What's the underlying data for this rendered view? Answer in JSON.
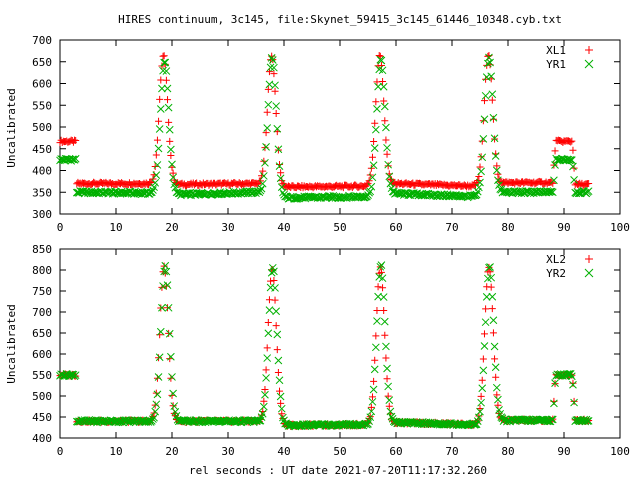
{
  "title": "HIRES continuum, 3c145, file:Skynet_59415_3c145_61446_10348.cyb.txt",
  "xlabel": "rel seconds : UT date 2021-07-20T11:17:32.260",
  "colors": {
    "xl": "#ff0000",
    "yr": "#00b000"
  },
  "chart_data": [
    {
      "type": "scatter",
      "ylabel": "Uncalibrated",
      "xlim": [
        0,
        100
      ],
      "ylim": [
        300,
        700
      ],
      "xticks": [
        "0",
        "10",
        "20",
        "30",
        "40",
        "50",
        "60",
        "70",
        "80",
        "90",
        "100"
      ],
      "yticks": [
        "300",
        "350",
        "400",
        "450",
        "500",
        "550",
        "600",
        "650",
        "700"
      ],
      "legend_position": "top-right",
      "series": [
        {
          "name": "XL1",
          "marker": "plus",
          "baseline": [
            [
              0,
              467
            ],
            [
              2.8,
              467
            ],
            [
              3,
              370
            ],
            [
              16.5,
              370
            ],
            [
              22,
              368
            ],
            [
              35,
              370
            ],
            [
              39.5,
              362
            ],
            [
              54.5,
              364
            ],
            [
              59.5,
              370
            ],
            [
              74.5,
              364
            ],
            [
              79.5,
              372
            ],
            [
              88,
              372
            ],
            [
              88.5,
              467
            ],
            [
              91.5,
              467
            ],
            [
              92,
              368
            ],
            [
              94.5,
              368
            ]
          ],
          "peaks": [
            [
              18.5,
              665
            ],
            [
              37.8,
              665
            ],
            [
              57.1,
              665
            ],
            [
              76.5,
              668
            ]
          ]
        },
        {
          "name": "YR1",
          "marker": "cross",
          "baseline": [
            [
              0,
              425
            ],
            [
              2.8,
              425
            ],
            [
              3,
              350
            ],
            [
              16.5,
              348
            ],
            [
              22,
              345
            ],
            [
              35,
              350
            ],
            [
              39.5,
              337
            ],
            [
              54.5,
              340
            ],
            [
              59.5,
              347
            ],
            [
              74.5,
              340
            ],
            [
              79.5,
              350
            ],
            [
              88,
              350
            ],
            [
              88.5,
              425
            ],
            [
              91.5,
              425
            ],
            [
              92,
              350
            ],
            [
              94.5,
              350
            ]
          ],
          "peaks": [
            [
              18.7,
              650
            ],
            [
              37.9,
              660
            ],
            [
              57.3,
              655
            ],
            [
              76.6,
              658
            ]
          ]
        }
      ]
    },
    {
      "type": "scatter",
      "ylabel": "Uncalibrated",
      "xlim": [
        0,
        100
      ],
      "ylim": [
        400,
        850
      ],
      "xticks": [
        "0",
        "10",
        "20",
        "30",
        "40",
        "50",
        "60",
        "70",
        "80",
        "90",
        "100"
      ],
      "yticks": [
        "400",
        "450",
        "500",
        "550",
        "600",
        "650",
        "700",
        "750",
        "800",
        "850"
      ],
      "legend_position": "top-right",
      "series": [
        {
          "name": "XL2",
          "marker": "plus",
          "baseline": [
            [
              0,
              550
            ],
            [
              2.8,
              550
            ],
            [
              3,
              440
            ],
            [
              16.5,
              440
            ],
            [
              22,
              440
            ],
            [
              35,
              440
            ],
            [
              39.5,
              430
            ],
            [
              54.5,
              432
            ],
            [
              59.5,
              437
            ],
            [
              74.5,
              432
            ],
            [
              79.5,
              442
            ],
            [
              88,
              442
            ],
            [
              88.5,
              550
            ],
            [
              91.5,
              550
            ],
            [
              92,
              442
            ],
            [
              94.5,
              442
            ]
          ],
          "peaks": [
            [
              18.6,
              808
            ],
            [
              37.9,
              802
            ],
            [
              57.2,
              807
            ],
            [
              76.6,
              808
            ]
          ]
        },
        {
          "name": "YR2",
          "marker": "cross",
          "baseline": [
            [
              0,
              550
            ],
            [
              2.8,
              550
            ],
            [
              3,
              440
            ],
            [
              16.5,
              440
            ],
            [
              22,
              440
            ],
            [
              35,
              440
            ],
            [
              39.5,
              430
            ],
            [
              54.5,
              432
            ],
            [
              59.5,
              437
            ],
            [
              74.5,
              432
            ],
            [
              79.5,
              442
            ],
            [
              88,
              442
            ],
            [
              88.5,
              550
            ],
            [
              91.5,
              550
            ],
            [
              92,
              442
            ],
            [
              94.5,
              442
            ]
          ],
          "peaks": [
            [
              18.8,
              812
            ],
            [
              38.0,
              808
            ],
            [
              57.3,
              812
            ],
            [
              76.7,
              810
            ]
          ]
        }
      ]
    }
  ]
}
